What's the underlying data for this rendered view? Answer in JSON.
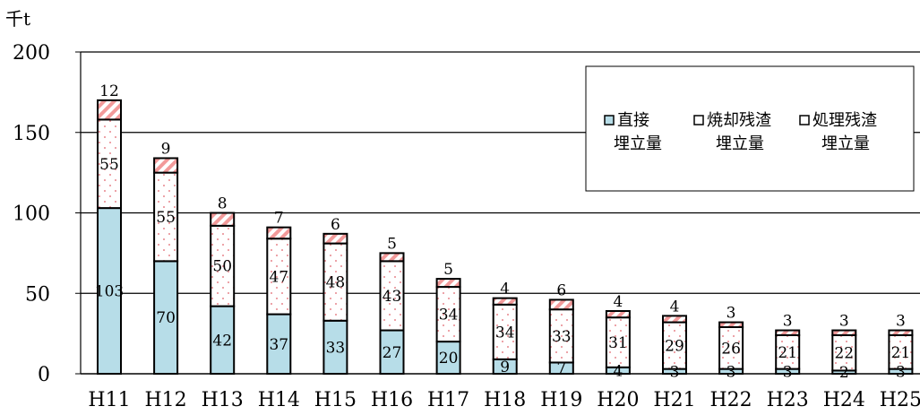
{
  "chart_data": {
    "type": "bar",
    "stacked": true,
    "unit": "千t",
    "ylim": [
      0,
      200
    ],
    "yticks": [
      0,
      50,
      100,
      150,
      200
    ],
    "grid": true,
    "legend_position": "top-right",
    "categories": [
      "H11",
      "H12",
      "H13",
      "H14",
      "H15",
      "H16",
      "H17",
      "H18",
      "H19",
      "H20",
      "H21",
      "H22",
      "H23",
      "H24",
      "H25"
    ],
    "series": [
      {
        "name": "直接埋立量",
        "legend_lines": [
          "直接",
          "埋立量"
        ],
        "color": "#b7dde8",
        "pattern": "solid",
        "values": [
          103,
          70,
          42,
          37,
          33,
          27,
          20,
          9,
          7,
          4,
          3,
          3,
          3,
          2,
          3
        ]
      },
      {
        "name": "焼却残渣埋立量",
        "legend_lines": [
          "焼却残渣",
          "埋立量"
        ],
        "color": "#ffffff",
        "dot_color": "#e8858c",
        "pattern": "dotted",
        "values": [
          55,
          55,
          50,
          47,
          48,
          43,
          34,
          34,
          33,
          31,
          29,
          26,
          21,
          22,
          21
        ]
      },
      {
        "name": "処理残渣埋立量",
        "legend_lines": [
          "処理残渣",
          "埋立量"
        ],
        "color": "#ffffff",
        "stripe_color": "#f29a9a",
        "pattern": "diagonal",
        "values": [
          12,
          9,
          8,
          7,
          6,
          5,
          5,
          4,
          6,
          4,
          4,
          3,
          3,
          3,
          3
        ]
      }
    ]
  }
}
